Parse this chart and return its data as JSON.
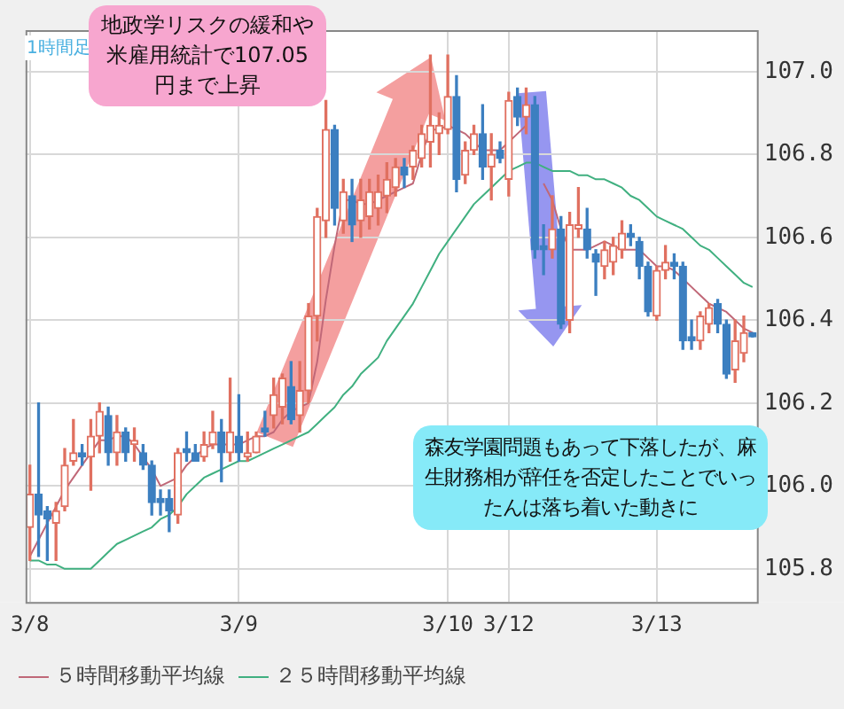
{
  "chart_data": {
    "type": "candlestick",
    "annotations": [
      "1時間足",
      "地政学リスクの緩和や米雇用統計で107.05円まで上昇",
      "森友学園問題もあって下落したが、麻生財務相が辞任を否定したことでいったんは落ち着いた動きに"
    ],
    "categories": [
      "3/8",
      null,
      null,
      null,
      null,
      null,
      null,
      null,
      null,
      null,
      null,
      null,
      null,
      null,
      null,
      null,
      null,
      null,
      null,
      null,
      null,
      null,
      null,
      null,
      "3/9",
      null,
      null,
      null,
      null,
      null,
      null,
      null,
      null,
      null,
      null,
      null,
      null,
      null,
      null,
      null,
      null,
      null,
      null,
      null,
      null,
      null,
      null,
      null,
      "3/10",
      null,
      null,
      null,
      null,
      null,
      null,
      "3/12",
      null,
      null,
      null,
      null,
      null,
      null,
      null,
      null,
      null,
      null,
      null,
      null,
      null,
      null,
      null,
      null,
      "3/13",
      null,
      null,
      null,
      null,
      null,
      null,
      null,
      null,
      null,
      null,
      null
    ],
    "ohlc": [
      [
        105.9,
        106.05,
        105.82,
        105.98
      ],
      [
        105.98,
        106.2,
        105.83,
        105.93
      ],
      [
        105.94,
        105.95,
        105.82,
        105.92
      ],
      [
        105.91,
        105.96,
        105.82,
        105.94
      ],
      [
        105.95,
        106.09,
        105.94,
        106.05
      ],
      [
        106.06,
        106.16,
        106.05,
        106.08
      ],
      [
        106.08,
        106.1,
        106.05,
        106.07
      ],
      [
        106.07,
        106.16,
        105.99,
        106.12
      ],
      [
        106.12,
        106.2,
        106.08,
        106.18
      ],
      [
        106.17,
        106.19,
        106.05,
        106.08
      ],
      [
        106.08,
        106.17,
        106.05,
        106.13
      ],
      [
        106.13,
        106.14,
        106.06,
        106.08
      ],
      [
        106.1,
        106.14,
        106.06,
        106.11
      ],
      [
        106.08,
        106.1,
        106.04,
        106.05
      ],
      [
        106.05,
        106.06,
        105.93,
        105.96
      ],
      [
        105.97,
        105.99,
        105.93,
        105.96
      ],
      [
        105.97,
        105.99,
        105.89,
        105.94
      ],
      [
        105.93,
        106.09,
        105.91,
        106.08
      ],
      [
        106.09,
        106.13,
        106.06,
        106.08
      ],
      [
        106.08,
        106.1,
        106.06,
        106.06
      ],
      [
        106.07,
        106.13,
        106.06,
        106.1
      ],
      [
        106.1,
        106.18,
        106.09,
        106.13
      ],
      [
        106.13,
        106.16,
        106.01,
        106.08
      ],
      [
        106.08,
        106.26,
        106.06,
        106.13
      ],
      [
        106.12,
        106.22,
        106.06,
        106.08
      ],
      [
        106.07,
        106.13,
        106.06,
        106.08
      ],
      [
        106.08,
        106.13,
        106.08,
        106.12
      ],
      [
        106.14,
        106.18,
        106.12,
        106.13
      ],
      [
        106.17,
        106.26,
        106.14,
        106.22
      ],
      [
        106.19,
        106.27,
        106.15,
        106.26
      ],
      [
        106.24,
        106.3,
        106.15,
        106.16
      ],
      [
        106.17,
        106.3,
        106.13,
        106.23
      ],
      [
        106.23,
        106.44,
        106.2,
        106.41
      ],
      [
        106.41,
        106.67,
        106.35,
        106.65
      ],
      [
        106.64,
        106.93,
        106.6,
        106.86
      ],
      [
        106.86,
        106.87,
        106.63,
        106.67
      ],
      [
        106.64,
        106.74,
        106.61,
        106.71
      ],
      [
        106.7,
        106.74,
        106.59,
        106.63
      ],
      [
        106.64,
        106.74,
        106.6,
        106.69
      ],
      [
        106.65,
        106.74,
        106.62,
        106.71
      ],
      [
        106.67,
        106.75,
        106.63,
        106.71
      ],
      [
        106.7,
        106.78,
        106.66,
        106.74
      ],
      [
        106.72,
        106.79,
        106.7,
        106.77
      ],
      [
        106.77,
        106.79,
        106.72,
        106.75
      ],
      [
        106.77,
        106.82,
        106.74,
        106.81
      ],
      [
        106.79,
        106.87,
        106.77,
        106.85
      ],
      [
        106.83,
        107.04,
        106.77,
        106.87
      ],
      [
        106.85,
        106.9,
        106.8,
        106.87
      ],
      [
        106.86,
        107.04,
        106.85,
        106.94
      ],
      [
        106.94,
        106.99,
        106.71,
        106.74
      ],
      [
        106.75,
        106.83,
        106.73,
        106.81
      ],
      [
        106.81,
        106.87,
        106.8,
        106.85
      ],
      [
        106.85,
        106.92,
        106.74,
        106.77
      ],
      [
        106.77,
        106.85,
        106.69,
        106.8
      ],
      [
        106.81,
        106.83,
        106.78,
        106.79
      ],
      [
        106.74,
        106.95,
        106.7,
        106.93
      ],
      [
        106.94,
        106.96,
        106.87,
        106.89
      ],
      [
        106.89,
        106.96,
        106.85,
        106.92
      ],
      [
        106.92,
        106.94,
        106.55,
        106.57
      ],
      [
        106.58,
        106.63,
        106.51,
        106.57
      ],
      [
        106.57,
        106.7,
        106.55,
        106.62
      ],
      [
        106.62,
        106.65,
        106.38,
        106.39
      ],
      [
        106.4,
        106.66,
        106.37,
        106.63
      ],
      [
        106.62,
        106.72,
        106.6,
        106.63
      ],
      [
        106.62,
        106.67,
        106.55,
        106.57
      ],
      [
        106.56,
        106.57,
        106.46,
        106.54
      ],
      [
        106.53,
        106.59,
        106.5,
        106.57
      ],
      [
        106.54,
        106.6,
        106.51,
        106.58
      ],
      [
        106.57,
        106.64,
        106.55,
        106.61
      ],
      [
        106.61,
        106.63,
        106.58,
        106.6
      ],
      [
        106.59,
        106.6,
        106.5,
        106.53
      ],
      [
        106.53,
        106.54,
        106.41,
        106.42
      ],
      [
        106.41,
        106.53,
        106.4,
        106.52
      ],
      [
        106.52,
        106.58,
        106.5,
        106.54
      ],
      [
        106.54,
        106.56,
        106.5,
        106.53
      ],
      [
        106.53,
        106.54,
        106.33,
        106.35
      ],
      [
        106.36,
        106.4,
        106.33,
        106.35
      ],
      [
        106.35,
        106.42,
        106.33,
        106.41
      ],
      [
        106.39,
        106.44,
        106.37,
        106.43
      ],
      [
        106.44,
        106.45,
        106.37,
        106.39
      ],
      [
        106.39,
        106.4,
        106.26,
        106.27
      ],
      [
        106.28,
        106.4,
        106.25,
        106.35
      ],
      [
        106.32,
        106.41,
        106.3,
        106.37
      ],
      [
        106.37,
        106.37,
        106.36,
        106.36
      ]
    ],
    "colors": [
      "#e07060",
      "#3c7fc0",
      "#3c7fc0",
      "#e07060",
      "#e07060",
      "#e07060",
      "#3c7fc0",
      "#e07060",
      "#e07060",
      "#3c7fc0",
      "#e07060",
      "#3c7fc0",
      "#e07060",
      "#3c7fc0",
      "#3c7fc0",
      "#3c7fc0",
      "#3c7fc0",
      "#e07060",
      "#3c7fc0",
      "#3c7fc0",
      "#e07060",
      "#e07060",
      "#3c7fc0",
      "#e07060",
      "#3c7fc0",
      "#e07060",
      "#e07060",
      "#3c7fc0",
      "#e07060",
      "#e07060",
      "#3c7fc0",
      "#e07060",
      "#e07060",
      "#e07060",
      "#e07060",
      "#3c7fc0",
      "#e07060",
      "#3c7fc0",
      "#e07060",
      "#e07060",
      "#e07060",
      "#e07060",
      "#e07060",
      "#3c7fc0",
      "#e07060",
      "#e07060",
      "#e07060",
      "#e07060",
      "#e07060",
      "#3c7fc0",
      "#e07060",
      "#e07060",
      "#3c7fc0",
      "#e07060",
      "#3c7fc0",
      "#e07060",
      "#3c7fc0",
      "#e07060",
      "#3c7fc0",
      "#3c7fc0",
      "#e07060",
      "#3c7fc0",
      "#e07060",
      "#e07060",
      "#3c7fc0",
      "#3c7fc0",
      "#e07060",
      "#e07060",
      "#e07060",
      "#3c7fc0",
      "#3c7fc0",
      "#3c7fc0",
      "#e07060",
      "#e07060",
      "#3c7fc0",
      "#3c7fc0",
      "#3c7fc0",
      "#e07060",
      "#e07060",
      "#3c7fc0",
      "#3c7fc0",
      "#e07060",
      "#e07060",
      "#3c7fc0"
    ],
    "series": [
      {
        "type": "line",
        "name": "５時間移動平均線",
        "color": "#c06878",
        "values": [
          105.83,
          105.87,
          105.91,
          105.95,
          105.99,
          106.02,
          106.05,
          106.08,
          106.11,
          106.11,
          106.12,
          106.12,
          106.1,
          106.07,
          106.04,
          106.0,
          106.01,
          106.02,
          106.05,
          106.07,
          106.09,
          106.1,
          106.1,
          106.1,
          106.1,
          106.11,
          106.12,
          106.12,
          106.13,
          106.16,
          106.18,
          106.19,
          106.2,
          106.3,
          106.45,
          106.58,
          106.69,
          106.69,
          106.68,
          106.68,
          106.69,
          106.7,
          106.71,
          106.72,
          106.73,
          106.8,
          106.86,
          106.86,
          106.87,
          106.86,
          106.85,
          106.83,
          106.81,
          106.81,
          106.81,
          106.83,
          106.85,
          106.87,
          null,
          106.73,
          106.69,
          106.62,
          106.57,
          106.57,
          106.57,
          106.58,
          106.59,
          106.58,
          106.57,
          106.57,
          106.57,
          106.55,
          106.53,
          106.53,
          106.52,
          106.5,
          106.48,
          106.46,
          106.44,
          106.43,
          106.42,
          106.4,
          106.38,
          106.37
        ]
      },
      {
        "type": "line",
        "name": "２５時間移動平均線",
        "color": "#40b080",
        "values": [
          105.82,
          105.82,
          105.81,
          105.81,
          105.8,
          105.8,
          105.8,
          105.8,
          105.82,
          105.84,
          105.86,
          105.87,
          105.88,
          105.89,
          105.9,
          105.92,
          105.93,
          105.95,
          105.98,
          106.0,
          106.02,
          106.03,
          106.04,
          106.05,
          106.06,
          106.06,
          106.07,
          106.08,
          106.09,
          106.1,
          106.11,
          106.12,
          106.13,
          106.15,
          106.17,
          106.19,
          106.22,
          106.24,
          106.27,
          106.29,
          106.31,
          106.35,
          106.38,
          106.41,
          106.44,
          106.48,
          106.52,
          106.56,
          106.59,
          106.62,
          106.65,
          106.68,
          106.7,
          106.72,
          106.74,
          106.76,
          106.77,
          106.78,
          106.78,
          106.77,
          106.76,
          106.76,
          106.76,
          106.75,
          106.75,
          106.74,
          106.74,
          106.73,
          106.72,
          106.7,
          106.69,
          106.67,
          106.65,
          106.64,
          106.63,
          106.62,
          106.6,
          106.58,
          106.57,
          106.55,
          106.53,
          106.51,
          106.49,
          106.48
        ]
      }
    ],
    "ylim": [
      105.72,
      107.1
    ],
    "yticks": [
      {
        "value": 105.8,
        "label": "105.8"
      },
      {
        "value": 106,
        "label": "106.0"
      },
      {
        "value": 106.2,
        "label": "106.2"
      },
      {
        "value": 106.4,
        "label": "106.4"
      },
      {
        "value": 106.6,
        "label": "106.6"
      },
      {
        "value": 106.8,
        "label": "106.8"
      },
      {
        "value": 107,
        "label": "107.0"
      }
    ],
    "grid": true,
    "legend": "bottom",
    "marker": "none",
    "line_style": "solid"
  }
}
